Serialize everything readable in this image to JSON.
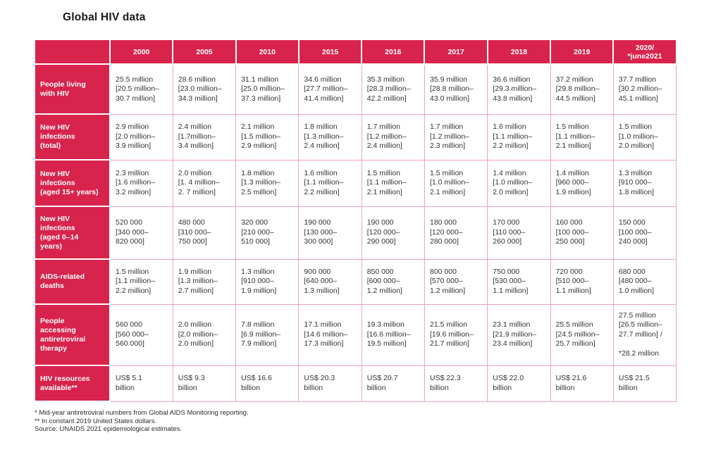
{
  "page": {
    "title": "Global HIV data",
    "footnotes": [
      "* Mid-year antiretroviral numbers from Global AIDS Monitoring reporting.",
      "** In constant 2019 United States dollars.",
      "Source: UNAIDS 2021 epidemiological estimates."
    ]
  },
  "colors": {
    "brand_red": "#d8234c",
    "cell_border_pink": "#f0a3b6",
    "text_dark": "#333333"
  },
  "table": {
    "columns": [
      "",
      "2000",
      "2005",
      "2010",
      "2015",
      "2016",
      "2017",
      "2018",
      "2019",
      "2020/\n*june2021"
    ],
    "rows": [
      {
        "label": "People living\nwith HIV",
        "cells": [
          "25.5 million\n[20.5 million–\n30.7 million]",
          "28.6 million\n[23.0 million–\n34.3 million]",
          "31.1 million\n[25.0 million–\n37.3 million]",
          "34.6 million\n[27.7 million–\n41.4 million]",
          "35.3 million\n[28.3 million–\n42.2 million]",
          "35.9 million\n[28.8 million–\n43.0 million]",
          "36.6 million\n[29.3 million–\n43.8 million]",
          "37.2 million\n[29.8 million–\n44.5 million]",
          "37.7 million\n[30.2 million–\n45.1 million]"
        ]
      },
      {
        "label": "New HIV\ninfections\n(total)",
        "cells": [
          "2.9 million\n[2.0 million–\n3.9 million]",
          "2.4 million\n[1.7million–\n3.4 million]",
          "2.1 million\n[1.5 million–\n2.9 million]",
          "1.8 million\n[1.3 million–\n2.4 million]",
          "1.7 million\n[1.2 million–\n2.4 million]",
          "1.7 million\n[1.2 million–\n2.3 million]",
          "1.6 million\n[1.1 million–\n2.2 million]",
          "1.5 million\n[1.1 million–\n2.1 million]",
          "1.5 million\n[1.0 million–\n2.0 million]"
        ]
      },
      {
        "label": "New HIV\ninfections\n(aged 15+ years)",
        "cells": [
          "2.3 million\n[1.6 million–\n3.2 million]",
          "2.0 million\n[1. 4 million–\n2. 7 million]",
          "1.8 million\n[1.3 million–\n2.5 million]",
          "1.6 million\n[1.1 million–\n2.2 million]",
          "1.5 million\n[1.1 million–\n2.1 million]",
          "1.5 million\n[1.0 million–\n2.1 million]",
          "1.4 million\n[1.0 million–\n2.0 million]",
          "1.4 million\n[960 000–\n1.9 million]",
          "1.3 million\n[910 000–\n1.8 million]"
        ]
      },
      {
        "label": "New HIV\ninfections\n(aged 0–14\nyears)",
        "cells": [
          "520 000\n[340 000–\n820 000]",
          "480 000\n[310 000–\n750 000]",
          "320 000\n[210 000–\n510 000]",
          "190 000\n[130 000–\n300 000]",
          "190 000\n[120 000–\n290 000]",
          "180 000\n[120 000–\n280 000]",
          "170 000\n[110 000–\n260 000]",
          "160 000\n[100 000–\n250 000]",
          "150 000\n[100 000–\n240 000]"
        ]
      },
      {
        "label": "AIDS-related\ndeaths",
        "cells": [
          "1.5 million\n[1.1 million–\n2.2 million]",
          "1.9 million\n[1.3 million–\n2.7 million]",
          "1.3 million\n[910 000–\n1.9 million]",
          "900 000\n[640 000–\n1.3 million]",
          "850 000\n[600 000–\n1.2 million]",
          "800 000\n[570 000–\n1.2 million]",
          "750 000\n[530 000–\n1.1 million]",
          "720 000\n[510 000–\n1.1 million]",
          "680 000\n[480 000–\n1.0 million]"
        ]
      },
      {
        "label": "People\naccessing\nantiretroviral\ntherapy",
        "cells": [
          "560 000\n[560 000–\n560 000]",
          "2.0 million\n[2.0 million–\n2.0 million]",
          "7.8 million\n[6.9 million–\n7.9 million]",
          "17.1 million\n[14.6 million–\n17.3 million]",
          "19.3 million\n[16.6 million–\n19.5 million]",
          "21.5 million\n[19.6 million–\n21.7 million]",
          "23.1 million\n[21.9 million–\n23.4 million]",
          "25.5 million\n[24.5 million–\n25.7 million]",
          "27.5 million\n[26.5 million–\n27.7 million] /\n\n*28.2 million"
        ]
      },
      {
        "label": "HIV resources\navailable**",
        "cells": [
          "US$ 5.1\nbillion",
          "US$ 9.3\nbillion",
          "US$ 16.6\nbillion",
          "US$ 20.3\nbillion",
          "US$ 20.7\nbillion",
          "US$ 22.3\nbillion",
          "US$ 22.0\nbillion",
          "US$ 21.6\nbillion",
          "US$ 21.5\nbillion"
        ]
      }
    ]
  }
}
